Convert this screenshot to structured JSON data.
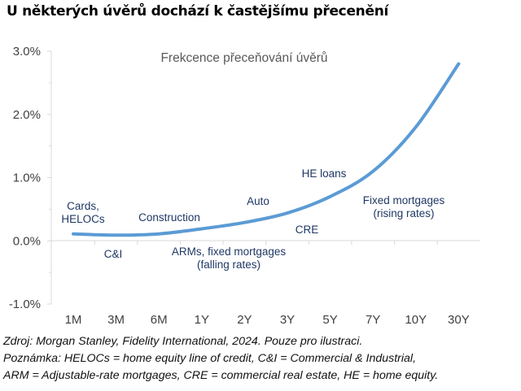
{
  "heading": "U některých úvěrů dochází k častějšímu přecenění",
  "chart_data": {
    "type": "line",
    "title": "Frekcence přeceňování úvěrů",
    "xlabel": "",
    "ylabel": "",
    "categories": [
      "1M",
      "3M",
      "6M",
      "1Y",
      "2Y",
      "3Y",
      "5Y",
      "7Y",
      "10Y",
      "30Y"
    ],
    "values": [
      0.11,
      0.09,
      0.11,
      0.19,
      0.29,
      0.44,
      0.7,
      1.1,
      1.8,
      2.8
    ],
    "ylim": [
      -1.0,
      3.0
    ],
    "yticks": [
      3.0,
      2.0,
      1.0,
      0.0,
      -1.0
    ],
    "ytick_labels": [
      "3.0%",
      "2.0%",
      "1.0%",
      "0.0%",
      "-1.0%"
    ],
    "grid": false,
    "line_color": "#5b9bd5",
    "annotations": [
      {
        "lines": [
          "Cards,",
          "HELOCs"
        ],
        "x": "1M",
        "y": 0.48
      },
      {
        "lines": [
          "C&I"
        ],
        "x": "3M",
        "y": -0.25
      },
      {
        "lines": [
          "Construction"
        ],
        "x": "6M-1Y",
        "y": 0.33
      },
      {
        "lines": [
          "ARMs, fixed mortgages",
          "(falling rates)"
        ],
        "x": "2Y",
        "y": -0.25
      },
      {
        "lines": [
          "Auto"
        ],
        "x": "3Y-",
        "y": 0.6
      },
      {
        "lines": [
          "CRE"
        ],
        "x": "5Y-",
        "y": 0.15
      },
      {
        "lines": [
          "HE loans"
        ],
        "x": "5Y",
        "y": 1.05
      },
      {
        "lines": [
          "Fixed mortgages",
          "(rising rates)"
        ],
        "x": "10Y-",
        "y": 0.6
      }
    ]
  },
  "notes": [
    "Zdroj: Morgan Stanley, Fidelity International, 2024. Pouze pro ilustraci.",
    "Poznámka: HELOCs = home equity line of credit, C&I = Commercial & Industrial,",
    "ARM = Adjustable-rate mortgages, CRE = commercial real estate, HE = home equity."
  ]
}
